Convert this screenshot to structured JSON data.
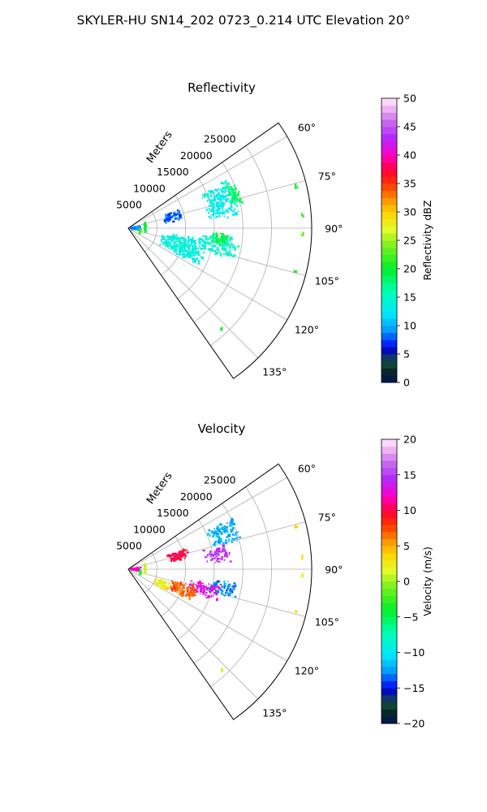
{
  "suptitle": "SKYLER-HU  SN14_202  0723_0.214 UTC Elevation 20°",
  "colors": {
    "grid": "#b0b0b0",
    "frame": "#000000"
  },
  "chart_data": [
    {
      "type": "heatmap",
      "projection": "polar-sector",
      "title": "Reflectivity",
      "r_axis_label": "Meters",
      "r_ticks": [
        "5000",
        "10000",
        "15000",
        "20000",
        "25000"
      ],
      "r_tick_values": [
        5000,
        10000,
        15000,
        20000,
        25000
      ],
      "r_max": 32000,
      "theta_ticks": [
        "60°",
        "75°",
        "90°",
        "105°",
        "120°",
        "135°"
      ],
      "theta_tick_values": [
        60,
        75,
        90,
        105,
        120,
        135
      ],
      "theta_range_deg": [
        55,
        145
      ],
      "grid": true,
      "colorbar": {
        "label": "Reflectivity dBZ",
        "min": 0,
        "max": 50,
        "ticks": [
          "0",
          "5",
          "10",
          "15",
          "20",
          "25",
          "30",
          "35",
          "40",
          "45",
          "50"
        ]
      },
      "echo_regions": [
        {
          "az": [
            64,
            84
          ],
          "r": [
            14000,
            19500
          ],
          "value": 13
        },
        {
          "az": [
            66,
            78
          ],
          "r": [
            18500,
            20500
          ],
          "value": 18
        },
        {
          "az": [
            95,
            107
          ],
          "r": [
            13000,
            19500
          ],
          "value": 15
        },
        {
          "az": [
            98,
            118
          ],
          "r": [
            6000,
            14000
          ],
          "value": 14
        },
        {
          "az": [
            93,
            100
          ],
          "r": [
            14500,
            17500
          ],
          "value": 19
        },
        {
          "az": [
            70,
            82
          ],
          "r": [
            6500,
            9500
          ],
          "value": 8
        },
        {
          "az": [
            80,
            98
          ],
          "r": [
            300,
            2200
          ],
          "value": 9
        }
      ],
      "rings": [
        {
          "r": 3000,
          "az": [
            72,
            104
          ],
          "value": 20
        },
        {
          "r": 2200,
          "az": [
            95,
            115
          ],
          "value": 22
        }
      ],
      "far_points": [
        {
          "az": 76,
          "r": 30200,
          "value": 20
        },
        {
          "az": 86,
          "r": 30500,
          "value": 22
        },
        {
          "az": 92,
          "r": 30400,
          "value": 24
        },
        {
          "az": 104,
          "r": 30100,
          "value": 21
        },
        {
          "az": 137,
          "r": 24000,
          "value": 20
        }
      ]
    },
    {
      "type": "heatmap",
      "projection": "polar-sector",
      "title": "Velocity",
      "r_axis_label": "Meters",
      "r_ticks": [
        "5000",
        "10000",
        "15000",
        "20000",
        "25000"
      ],
      "r_tick_values": [
        5000,
        10000,
        15000,
        20000,
        25000
      ],
      "r_max": 32000,
      "theta_ticks": [
        "60°",
        "75°",
        "90°",
        "105°",
        "120°",
        "135°"
      ],
      "theta_tick_values": [
        60,
        75,
        90,
        105,
        120,
        135
      ],
      "theta_range_deg": [
        55,
        145
      ],
      "grid": true,
      "colorbar": {
        "label": "Velocity (m/s)",
        "min": -20,
        "max": 20,
        "ticks": [
          "−20",
          "−15",
          "−10",
          "−5",
          "0",
          "5",
          "10",
          "15",
          "20"
        ]
      },
      "echo_regions": [
        {
          "az": [
            64,
            76
          ],
          "r": [
            15000,
            20500
          ],
          "value": -12
        },
        {
          "az": [
            76,
            86
          ],
          "r": [
            13500,
            18000
          ],
          "value": 15
        },
        {
          "az": [
            70,
            80
          ],
          "r": [
            7000,
            11000
          ],
          "value": 10
        },
        {
          "az": [
            97,
            106
          ],
          "r": [
            14500,
            19500
          ],
          "value": -13
        },
        {
          "az": [
            99,
            110
          ],
          "r": [
            11000,
            16500
          ],
          "value": 13
        },
        {
          "az": [
            104,
            117
          ],
          "r": [
            7500,
            12500
          ],
          "value": 7
        },
        {
          "az": [
            108,
            120
          ],
          "r": [
            5000,
            8000
          ],
          "value": 2
        },
        {
          "az": [
            80,
            98
          ],
          "r": [
            300,
            2200
          ],
          "value": 12
        }
      ],
      "rings": [
        {
          "r": 3000,
          "az": [
            72,
            104
          ],
          "value": 1
        },
        {
          "r": 2200,
          "az": [
            95,
            115
          ],
          "value": -3
        }
      ],
      "far_points": [
        {
          "az": 76,
          "r": 30200,
          "value": 4
        },
        {
          "az": 86,
          "r": 30500,
          "value": 3
        },
        {
          "az": 92,
          "r": 30400,
          "value": 2
        },
        {
          "az": 104,
          "r": 30100,
          "value": 1
        },
        {
          "az": 137,
          "r": 24000,
          "value": 1
        }
      ]
    }
  ]
}
